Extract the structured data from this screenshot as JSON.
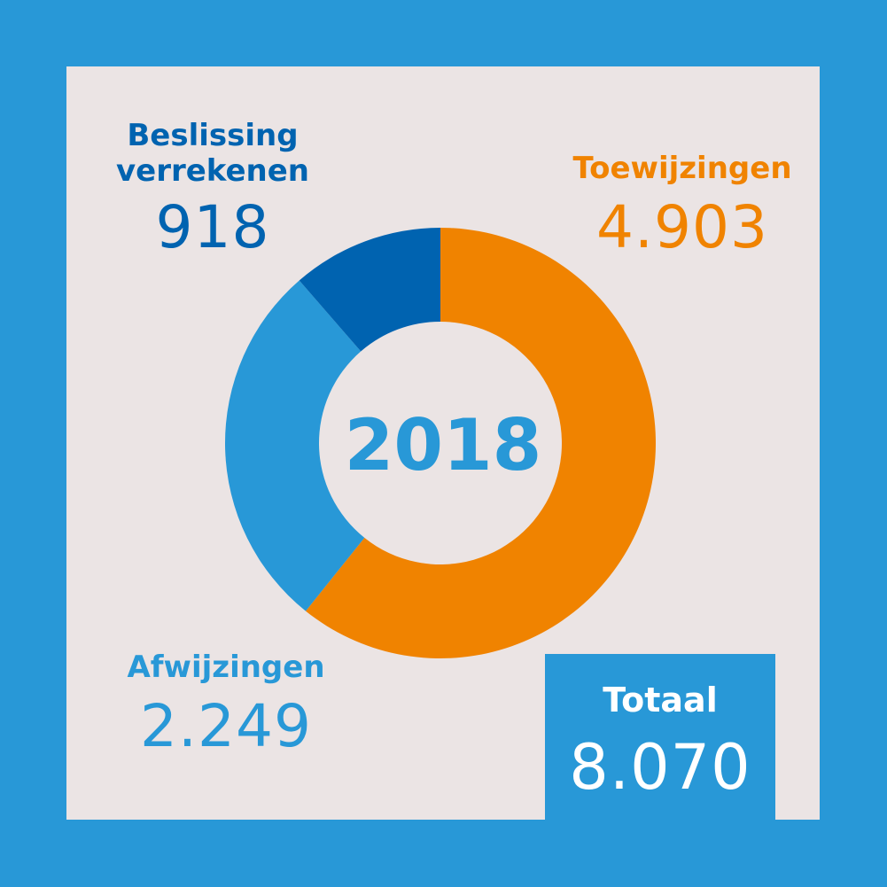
{
  "chart_data": {
    "type": "pie",
    "variant": "donut",
    "center_label": "2018",
    "slices": [
      {
        "label": "Toewijzingen",
        "value": 4903,
        "display": "4.903",
        "color": "#f08300"
      },
      {
        "label": "Afwijzingen",
        "value": 2249,
        "display": "2.249",
        "color": "#2898d7"
      },
      {
        "label": "Beslissing verrekenen",
        "label_lines": [
          "Beslissing",
          "verrekenen"
        ],
        "value": 918,
        "display": "918",
        "color": "#0063b0"
      }
    ],
    "total": {
      "label": "Totaal",
      "value": 8070,
      "display": "8.070"
    }
  },
  "colors": {
    "background": "#2898d7",
    "panel": "#ebe4e4"
  }
}
